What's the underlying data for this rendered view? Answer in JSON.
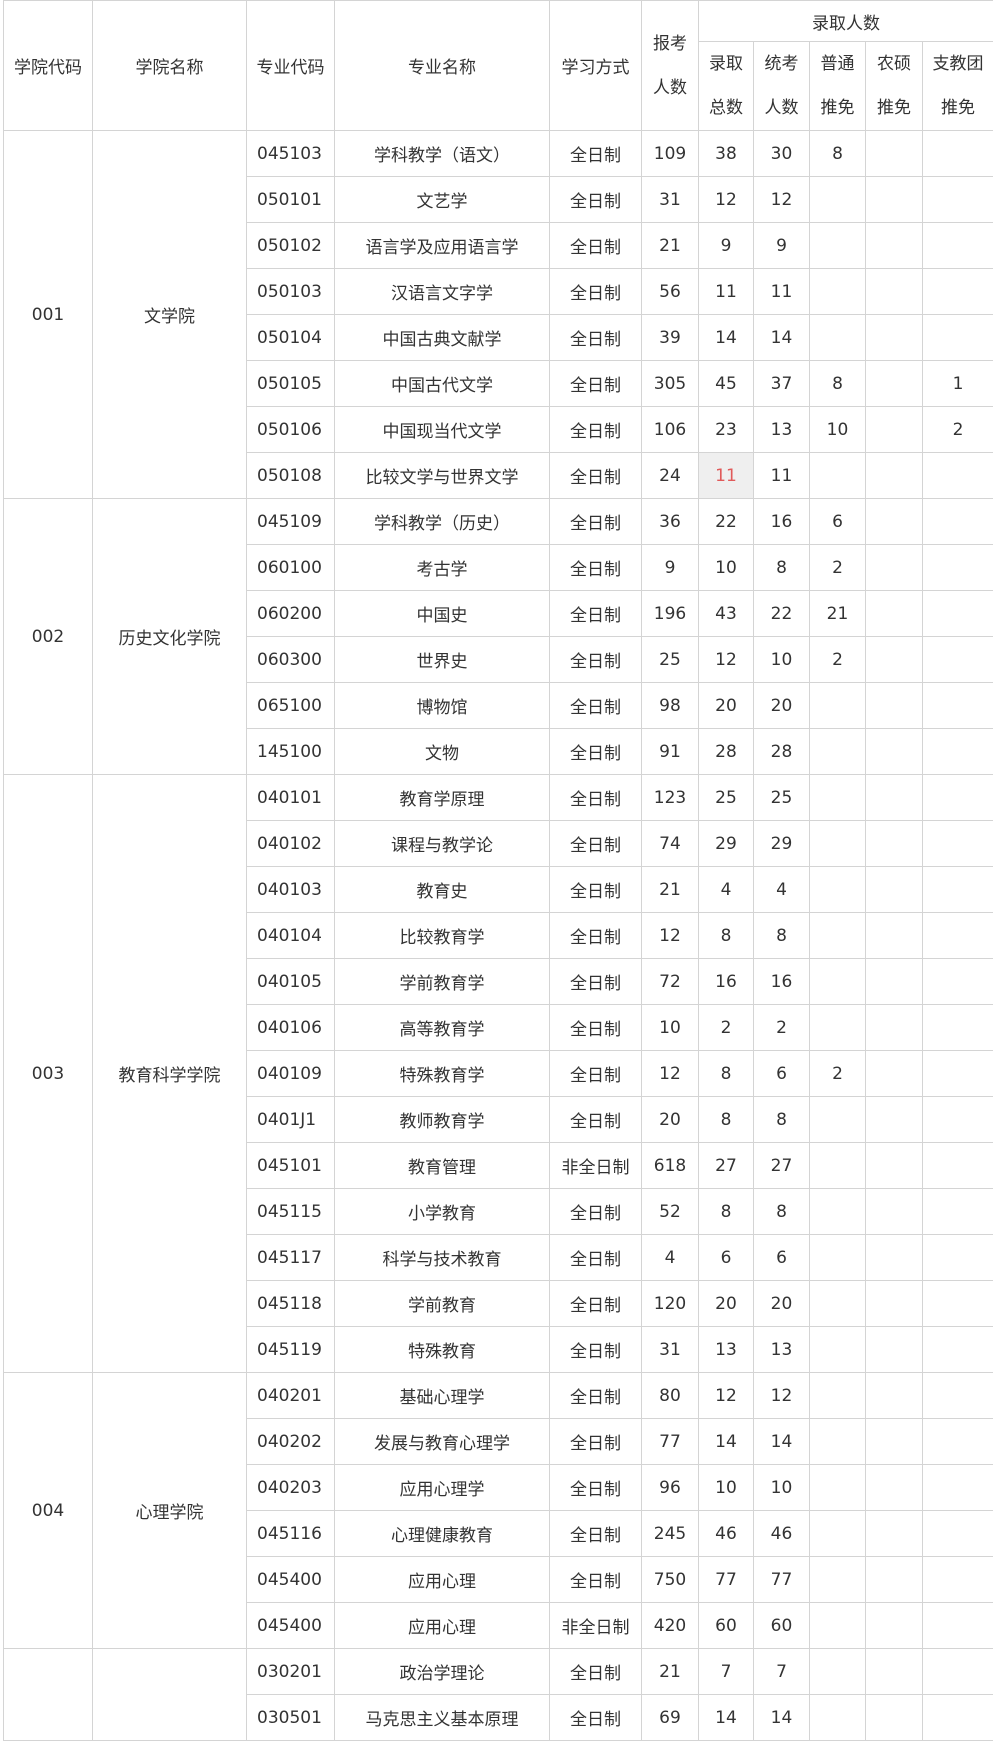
{
  "header": {
    "college_code": "学院代码",
    "college_name": "学院名称",
    "major_code": "专业代码",
    "major_name": "专业名称",
    "study_mode": "学习方式",
    "applicants": [
      "报考",
      "人数"
    ],
    "admitted_group": "录取人数",
    "sub": [
      [
        "录取",
        "总数"
      ],
      [
        "统考",
        "人数"
      ],
      [
        "普通",
        "推免"
      ],
      [
        "农硕",
        "推免"
      ],
      [
        "支教团",
        "推免"
      ]
    ]
  },
  "highlight_color": "#e05a5a",
  "groups": [
    {
      "code": "001",
      "name": "文学院",
      "rows": [
        [
          "045103",
          "学科教学（语文）",
          "全日制",
          "109",
          "38",
          "30",
          "8",
          "",
          ""
        ],
        [
          "050101",
          "文艺学",
          "全日制",
          "31",
          "12",
          "12",
          "",
          "",
          ""
        ],
        [
          "050102",
          "语言学及应用语言学",
          "全日制",
          "21",
          "9",
          "9",
          "",
          "",
          ""
        ],
        [
          "050103",
          "汉语言文字学",
          "全日制",
          "56",
          "11",
          "11",
          "",
          "",
          ""
        ],
        [
          "050104",
          "中国古典文献学",
          "全日制",
          "39",
          "14",
          "14",
          "",
          "",
          ""
        ],
        [
          "050105",
          "中国古代文学",
          "全日制",
          "305",
          "45",
          "37",
          "8",
          "",
          "1"
        ],
        [
          "050106",
          "中国现当代文学",
          "全日制",
          "106",
          "23",
          "13",
          "10",
          "",
          "2"
        ],
        [
          "050108",
          "比较文学与世界文学",
          "全日制",
          "24",
          "11",
          "11",
          "",
          "",
          ""
        ]
      ]
    },
    {
      "code": "002",
      "name": "历史文化学院",
      "rows": [
        [
          "045109",
          "学科教学（历史）",
          "全日制",
          "36",
          "22",
          "16",
          "6",
          "",
          ""
        ],
        [
          "060100",
          "考古学",
          "全日制",
          "9",
          "10",
          "8",
          "2",
          "",
          ""
        ],
        [
          "060200",
          "中国史",
          "全日制",
          "196",
          "43",
          "22",
          "21",
          "",
          ""
        ],
        [
          "060300",
          "世界史",
          "全日制",
          "25",
          "12",
          "10",
          "2",
          "",
          ""
        ],
        [
          "065100",
          "博物馆",
          "全日制",
          "98",
          "20",
          "20",
          "",
          "",
          ""
        ],
        [
          "145100",
          "文物",
          "全日制",
          "91",
          "28",
          "28",
          "",
          "",
          ""
        ]
      ]
    },
    {
      "code": "003",
      "name": "教育科学学院",
      "rows": [
        [
          "040101",
          "教育学原理",
          "全日制",
          "123",
          "25",
          "25",
          "",
          "",
          ""
        ],
        [
          "040102",
          "课程与教学论",
          "全日制",
          "74",
          "29",
          "29",
          "",
          "",
          ""
        ],
        [
          "040103",
          "教育史",
          "全日制",
          "21",
          "4",
          "4",
          "",
          "",
          ""
        ],
        [
          "040104",
          "比较教育学",
          "全日制",
          "12",
          "8",
          "8",
          "",
          "",
          ""
        ],
        [
          "040105",
          "学前教育学",
          "全日制",
          "72",
          "16",
          "16",
          "",
          "",
          ""
        ],
        [
          "040106",
          "高等教育学",
          "全日制",
          "10",
          "2",
          "2",
          "",
          "",
          ""
        ],
        [
          "040109",
          "特殊教育学",
          "全日制",
          "12",
          "8",
          "6",
          "2",
          "",
          ""
        ],
        [
          "0401J1",
          "教师教育学",
          "全日制",
          "20",
          "8",
          "8",
          "",
          "",
          ""
        ],
        [
          "045101",
          "教育管理",
          "非全日制",
          "618",
          "27",
          "27",
          "",
          "",
          ""
        ],
        [
          "045115",
          "小学教育",
          "全日制",
          "52",
          "8",
          "8",
          "",
          "",
          ""
        ],
        [
          "045117",
          "科学与技术教育",
          "全日制",
          "4",
          "6",
          "6",
          "",
          "",
          ""
        ],
        [
          "045118",
          "学前教育",
          "全日制",
          "120",
          "20",
          "20",
          "",
          "",
          ""
        ],
        [
          "045119",
          "特殊教育",
          "全日制",
          "31",
          "13",
          "13",
          "",
          "",
          ""
        ]
      ]
    },
    {
      "code": "004",
      "name": "心理学院",
      "rows": [
        [
          "040201",
          "基础心理学",
          "全日制",
          "80",
          "12",
          "12",
          "",
          "",
          ""
        ],
        [
          "040202",
          "发展与教育心理学",
          "全日制",
          "77",
          "14",
          "14",
          "",
          "",
          ""
        ],
        [
          "040203",
          "应用心理学",
          "全日制",
          "96",
          "10",
          "10",
          "",
          "",
          ""
        ],
        [
          "045116",
          "心理健康教育",
          "全日制",
          "245",
          "46",
          "46",
          "",
          "",
          ""
        ],
        [
          "045400",
          "应用心理",
          "全日制",
          "750",
          "77",
          "77",
          "",
          "",
          ""
        ],
        [
          "045400",
          "应用心理",
          "非全日制",
          "420",
          "60",
          "60",
          "",
          "",
          ""
        ]
      ]
    },
    {
      "code": "",
      "name": "",
      "rows": [
        [
          "030201",
          "政治学理论",
          "全日制",
          "21",
          "7",
          "7",
          "",
          "",
          ""
        ],
        [
          "030501",
          "马克思主义基本原理",
          "全日制",
          "69",
          "14",
          "14",
          "",
          "",
          ""
        ]
      ]
    }
  ]
}
